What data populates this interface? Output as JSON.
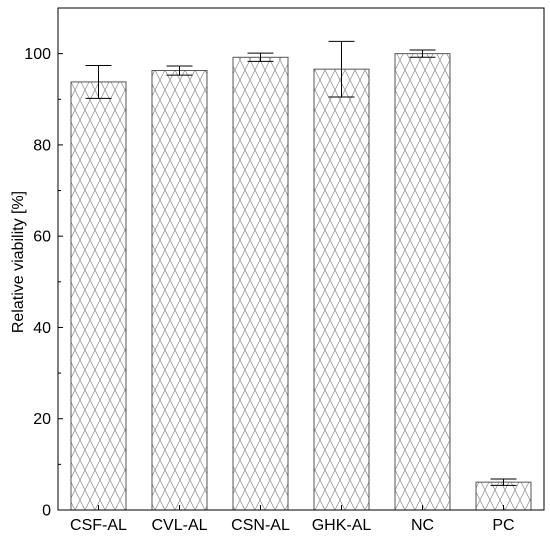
{
  "chart_data": {
    "type": "bar",
    "title": "",
    "xlabel": "",
    "ylabel": "Relative viability [%]",
    "ylim": [
      0,
      110
    ],
    "yticks": [
      0,
      20,
      40,
      60,
      80,
      100
    ],
    "categories": [
      "CSF-AL",
      "CVL-AL",
      "CSN-AL",
      "GHK-AL",
      "NC",
      "PC"
    ],
    "values": [
      93.8,
      96.3,
      99.2,
      96.6,
      100.0,
      6.1
    ],
    "error": [
      3.6,
      1.0,
      0.9,
      6.1,
      0.8,
      0.7
    ],
    "bar_pattern": "crosshatch",
    "grid": false,
    "legend": "none",
    "colors": {
      "bar_fill": "#ffffff",
      "hatch": "#8a8a8a",
      "axis": "#000000"
    }
  }
}
